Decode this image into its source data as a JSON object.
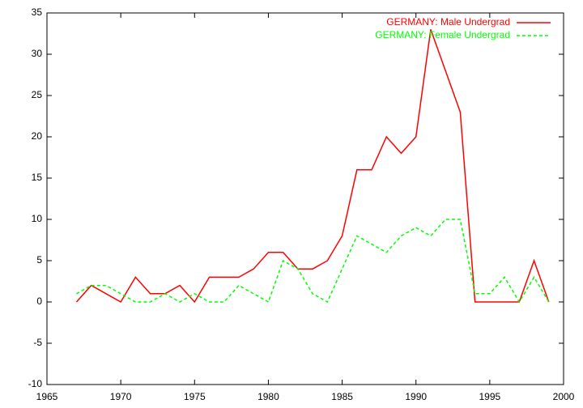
{
  "chart_data": {
    "type": "line",
    "x": [
      1967,
      1968,
      1969,
      1970,
      1971,
      1972,
      1973,
      1974,
      1975,
      1976,
      1977,
      1978,
      1979,
      1980,
      1981,
      1982,
      1983,
      1984,
      1985,
      1986,
      1987,
      1988,
      1989,
      1990,
      1991,
      1992,
      1993,
      1994,
      1995,
      1996,
      1997,
      1998,
      1999
    ],
    "series": [
      {
        "name": "GERMANY: Male Undergrad",
        "color": "#ff0000",
        "line_style": "solid",
        "values": [
          0,
          2,
          1,
          0,
          3,
          1,
          1,
          2,
          0,
          3,
          3,
          3,
          4,
          6,
          6,
          4,
          4,
          5,
          8,
          16,
          16,
          20,
          18,
          20,
          33,
          28,
          23,
          0,
          0,
          0,
          0,
          5,
          0
        ]
      },
      {
        "name": "GERMANY: Female Undergrad",
        "color": "#00ff00",
        "line_style": "dashed",
        "values": [
          1,
          2,
          2,
          1,
          0,
          0,
          1,
          0,
          1,
          0,
          0,
          2,
          1,
          0,
          5,
          4,
          1,
          0,
          4,
          8,
          7,
          6,
          8,
          9,
          8,
          10,
          10,
          1,
          1,
          3,
          0,
          3,
          0
        ]
      }
    ],
    "xlim": [
      1965,
      2000
    ],
    "xticks": [
      1965,
      1970,
      1975,
      1980,
      1985,
      1990,
      1995,
      2000
    ],
    "ylim": [
      -10,
      35
    ],
    "yticks": [
      -10,
      -5,
      0,
      5,
      10,
      15,
      20,
      25,
      30,
      35
    ],
    "legend": "top-right"
  }
}
